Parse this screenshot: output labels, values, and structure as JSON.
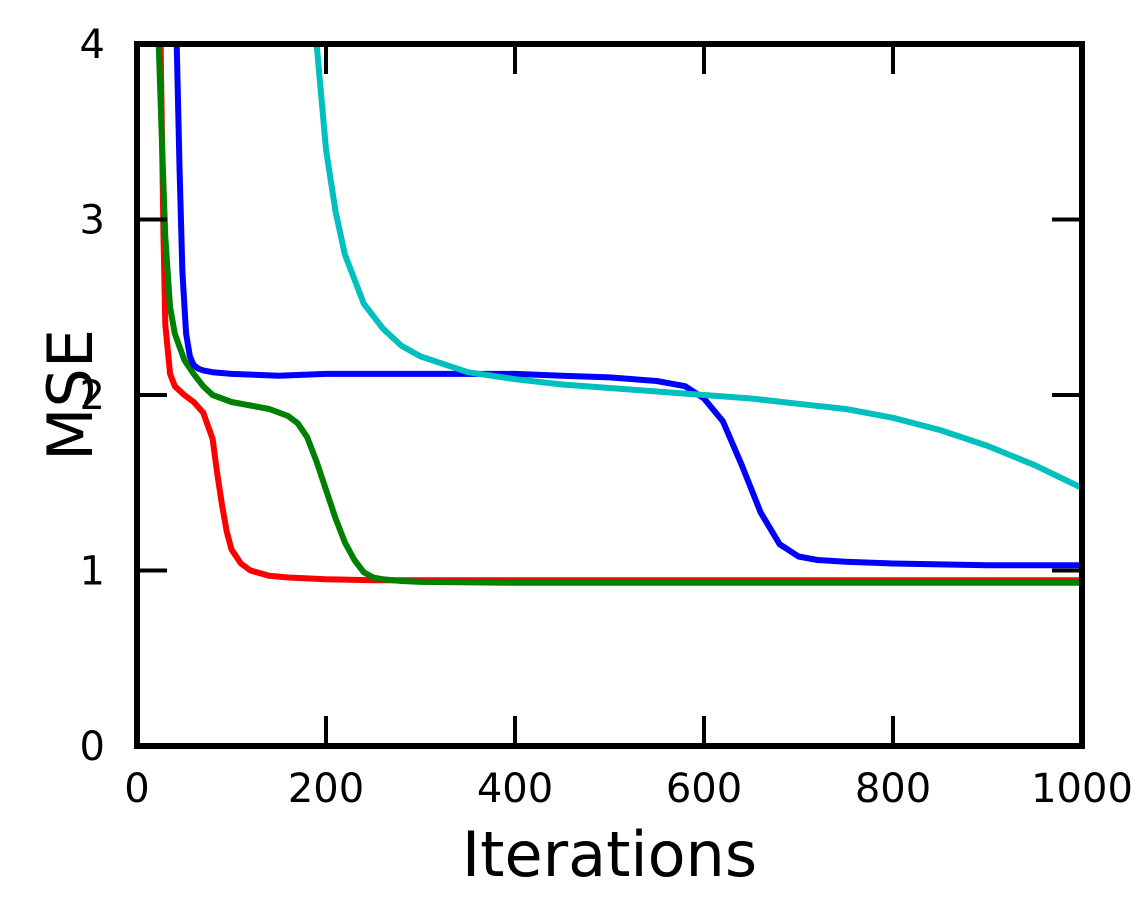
{
  "chart_data": {
    "type": "line",
    "xlabel": "Iterations",
    "ylabel": "MSE",
    "xlim": [
      0,
      1000
    ],
    "ylim": [
      0,
      4
    ],
    "xticks": [
      0,
      200,
      400,
      600,
      800,
      1000
    ],
    "yticks": [
      0,
      1,
      2,
      3,
      4
    ],
    "grid": false,
    "legend": "none",
    "series": [
      {
        "color": "#ff0000",
        "x": [
          25,
          28,
          30,
          35,
          40,
          50,
          60,
          70,
          80,
          85,
          90,
          95,
          100,
          110,
          120,
          140,
          160,
          200,
          250,
          300,
          400,
          600,
          800,
          1000
        ],
        "y": [
          4.0,
          2.9,
          2.4,
          2.12,
          2.05,
          2.0,
          1.96,
          1.9,
          1.75,
          1.55,
          1.37,
          1.22,
          1.12,
          1.04,
          1.0,
          0.97,
          0.96,
          0.95,
          0.945,
          0.945,
          0.945,
          0.945,
          0.945,
          0.945
        ]
      },
      {
        "color": "#008000",
        "x": [
          23,
          26,
          30,
          35,
          40,
          50,
          60,
          70,
          80,
          100,
          120,
          140,
          160,
          170,
          180,
          190,
          200,
          210,
          220,
          230,
          240,
          250,
          260,
          280,
          300,
          400,
          600,
          800,
          1000
        ],
        "y": [
          4.0,
          3.5,
          2.9,
          2.5,
          2.35,
          2.2,
          2.12,
          2.05,
          2.0,
          1.96,
          1.94,
          1.92,
          1.88,
          1.84,
          1.76,
          1.62,
          1.46,
          1.3,
          1.16,
          1.06,
          0.99,
          0.96,
          0.95,
          0.94,
          0.935,
          0.93,
          0.93,
          0.93,
          0.93
        ]
      },
      {
        "color": "#0000ff",
        "x": [
          42,
          45,
          48,
          52,
          56,
          60,
          65,
          70,
          80,
          100,
          150,
          200,
          250,
          300,
          350,
          400,
          450,
          500,
          550,
          580,
          600,
          620,
          640,
          660,
          680,
          700,
          720,
          750,
          800,
          900,
          1000
        ],
        "y": [
          4.0,
          3.3,
          2.7,
          2.35,
          2.22,
          2.17,
          2.15,
          2.14,
          2.13,
          2.12,
          2.11,
          2.12,
          2.12,
          2.12,
          2.12,
          2.12,
          2.11,
          2.1,
          2.08,
          2.05,
          1.98,
          1.85,
          1.6,
          1.33,
          1.15,
          1.08,
          1.06,
          1.05,
          1.04,
          1.03,
          1.03
        ]
      },
      {
        "color": "#00bfbf",
        "x": [
          190,
          195,
          200,
          210,
          220,
          240,
          260,
          280,
          300,
          350,
          400,
          450,
          500,
          550,
          600,
          650,
          700,
          750,
          800,
          850,
          900,
          950,
          1000
        ],
        "y": [
          4.0,
          3.7,
          3.4,
          3.05,
          2.8,
          2.52,
          2.38,
          2.28,
          2.22,
          2.13,
          2.09,
          2.06,
          2.04,
          2.02,
          2.0,
          1.98,
          1.95,
          1.92,
          1.87,
          1.8,
          1.71,
          1.6,
          1.47
        ]
      }
    ]
  }
}
